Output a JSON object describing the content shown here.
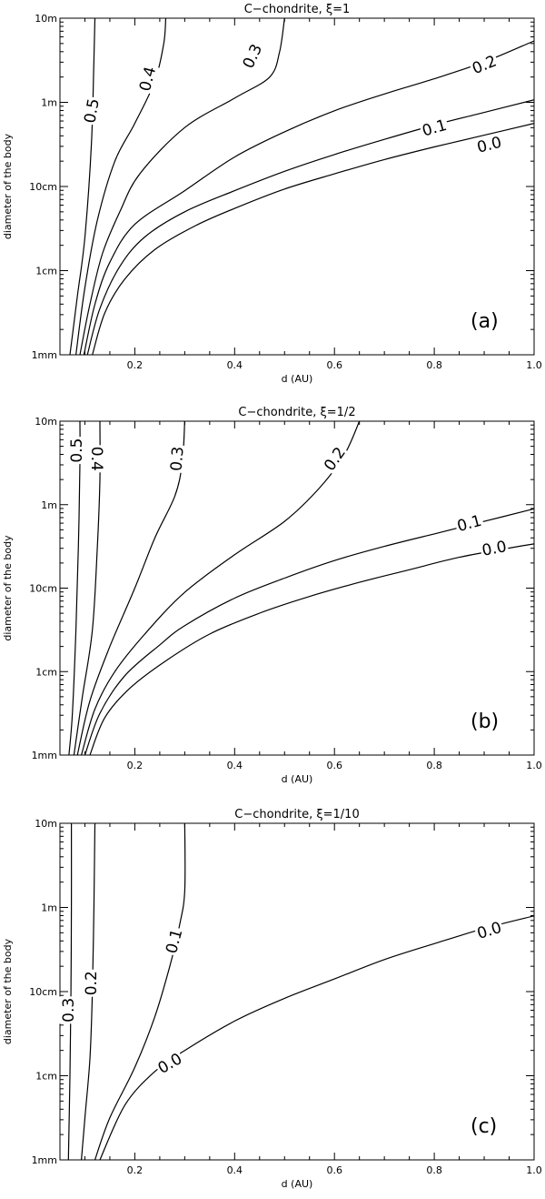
{
  "chart_data": [
    {
      "type": "contour",
      "title": "C−chondrite, ξ=1",
      "panel_label": "(a)",
      "xlabel": "d (AU)",
      "ylabel": "diameter of the body",
      "xlim": [
        0.05,
        1.0
      ],
      "ylim_log10_m": [
        -3,
        1
      ],
      "x_ticks": [
        0.2,
        0.4,
        0.6,
        0.8,
        1.0
      ],
      "x_tick_labels": [
        "0.2",
        "0.4",
        "0.6",
        "0.8",
        "1.0"
      ],
      "y_ticks": [
        -3,
        -2,
        -1,
        0,
        1
      ],
      "y_tick_labels": [
        "1mm",
        "1cm",
        "10cm",
        "1m",
        "10m"
      ],
      "contours": [
        {
          "level": "0.5",
          "points": [
            [
              0.07,
              -3.0
            ],
            [
              0.085,
              -2.3
            ],
            [
              0.1,
              -1.6
            ],
            [
              0.113,
              -0.5
            ],
            [
              0.118,
              0.5
            ],
            [
              0.12,
              1.0
            ]
          ],
          "label_at": [
            0.113,
            -0.1
          ],
          "label_rot": -80
        },
        {
          "level": "0.4",
          "points": [
            [
              0.082,
              -3.0
            ],
            [
              0.1,
              -2.2
            ],
            [
              0.125,
              -1.4
            ],
            [
              0.16,
              -0.7
            ],
            [
              0.2,
              -0.25
            ],
            [
              0.24,
              0.25
            ],
            [
              0.258,
              0.7
            ],
            [
              0.262,
              1.0
            ]
          ],
          "label_at": [
            0.225,
            0.28
          ],
          "label_rot": -75
        },
        {
          "level": "0.3",
          "points": [
            [
              0.09,
              -3.0
            ],
            [
              0.11,
              -2.4
            ],
            [
              0.135,
              -1.8
            ],
            [
              0.17,
              -1.3
            ],
            [
              0.21,
              -0.85
            ],
            [
              0.3,
              -0.3
            ],
            [
              0.4,
              0.05
            ],
            [
              0.47,
              0.3
            ],
            [
              0.49,
              0.6
            ],
            [
              0.5,
              1.0
            ]
          ],
          "label_at": [
            0.435,
            0.55
          ],
          "label_rot": -65
        },
        {
          "level": "0.2",
          "points": [
            [
              0.098,
              -3.0
            ],
            [
              0.12,
              -2.4
            ],
            [
              0.15,
              -1.9
            ],
            [
              0.2,
              -1.45
            ],
            [
              0.3,
              -1.05
            ],
            [
              0.4,
              -0.65
            ],
            [
              0.5,
              -0.35
            ],
            [
              0.6,
              -0.1
            ],
            [
              0.7,
              0.1
            ],
            [
              0.8,
              0.28
            ],
            [
              0.9,
              0.48
            ],
            [
              1.0,
              0.73
            ]
          ],
          "label_at": [
            0.9,
            0.45
          ],
          "label_rot": -22
        },
        {
          "level": "0.1",
          "points": [
            [
              0.105,
              -3.0
            ],
            [
              0.13,
              -2.45
            ],
            [
              0.17,
              -1.95
            ],
            [
              0.22,
              -1.6
            ],
            [
              0.3,
              -1.3
            ],
            [
              0.4,
              -1.05
            ],
            [
              0.5,
              -0.82
            ],
            [
              0.6,
              -0.62
            ],
            [
              0.7,
              -0.44
            ],
            [
              0.8,
              -0.27
            ],
            [
              0.9,
              -0.12
            ],
            [
              1.0,
              0.03
            ]
          ],
          "label_at": [
            0.8,
            -0.3
          ],
          "label_rot": -16
        },
        {
          "level": "0.0",
          "points": [
            [
              0.115,
              -3.0
            ],
            [
              0.14,
              -2.5
            ],
            [
              0.18,
              -2.1
            ],
            [
              0.24,
              -1.75
            ],
            [
              0.32,
              -1.47
            ],
            [
              0.4,
              -1.26
            ],
            [
              0.5,
              -1.03
            ],
            [
              0.6,
              -0.85
            ],
            [
              0.7,
              -0.68
            ],
            [
              0.8,
              -0.53
            ],
            [
              0.9,
              -0.39
            ],
            [
              1.0,
              -0.25
            ]
          ],
          "label_at": [
            0.91,
            -0.5
          ],
          "label_rot": -14
        }
      ]
    },
    {
      "type": "contour",
      "title": "C−chondrite, ξ=1/2",
      "panel_label": "(b)",
      "xlabel": "d (AU)",
      "ylabel": "diameter of the body",
      "xlim": [
        0.05,
        1.0
      ],
      "ylim_log10_m": [
        -3,
        1
      ],
      "x_ticks": [
        0.2,
        0.4,
        0.6,
        0.8,
        1.0
      ],
      "x_tick_labels": [
        "0.2",
        "0.4",
        "0.6",
        "0.8",
        "1.0"
      ],
      "y_ticks": [
        -3,
        -2,
        -1,
        0,
        1
      ],
      "y_tick_labels": [
        "1mm",
        "1cm",
        "10cm",
        "1m",
        "10m"
      ],
      "contours": [
        {
          "level": "0.5",
          "points": [
            [
              0.068,
              -3.0
            ],
            [
              0.075,
              -2.5
            ],
            [
              0.082,
              -1.5
            ],
            [
              0.087,
              -0.5
            ],
            [
              0.09,
              0.5
            ],
            [
              0.09,
              1.0
            ]
          ],
          "label_at": [
            0.083,
            0.65
          ],
          "label_rot": -90
        },
        {
          "level": "0.4",
          "points": [
            [
              0.078,
              -3.0
            ],
            [
              0.095,
              -2.3
            ],
            [
              0.115,
              -1.5
            ],
            [
              0.125,
              -0.5
            ],
            [
              0.13,
              0.3
            ],
            [
              0.13,
              1.0
            ]
          ],
          "label_at": [
            0.125,
            0.55
          ],
          "label_rot": 90
        },
        {
          "level": "0.3",
          "points": [
            [
              0.085,
              -3.0
            ],
            [
              0.11,
              -2.35
            ],
            [
              0.15,
              -1.7
            ],
            [
              0.2,
              -1.0
            ],
            [
              0.24,
              -0.4
            ],
            [
              0.28,
              0.1
            ],
            [
              0.295,
              0.5
            ],
            [
              0.3,
              1.0
            ]
          ],
          "label_at": [
            0.284,
            0.55
          ],
          "label_rot": -85
        },
        {
          "level": "0.2",
          "points": [
            [
              0.093,
              -3.0
            ],
            [
              0.12,
              -2.45
            ],
            [
              0.16,
              -2.0
            ],
            [
              0.22,
              -1.55
            ],
            [
              0.3,
              -1.05
            ],
            [
              0.4,
              -0.6
            ],
            [
              0.5,
              -0.2
            ],
            [
              0.57,
              0.2
            ],
            [
              0.62,
              0.6
            ],
            [
              0.65,
              1.0
            ]
          ],
          "label_at": [
            0.6,
            0.55
          ],
          "label_rot": -55
        },
        {
          "level": "0.1",
          "points": [
            [
              0.1,
              -3.0
            ],
            [
              0.13,
              -2.5
            ],
            [
              0.18,
              -2.05
            ],
            [
              0.25,
              -1.68
            ],
            [
              0.3,
              -1.45
            ],
            [
              0.4,
              -1.12
            ],
            [
              0.5,
              -0.88
            ],
            [
              0.6,
              -0.67
            ],
            [
              0.7,
              -0.5
            ],
            [
              0.8,
              -0.35
            ],
            [
              0.9,
              -0.2
            ],
            [
              1.0,
              -0.05
            ]
          ],
          "label_at": [
            0.87,
            -0.22
          ],
          "label_rot": -15
        },
        {
          "level": "0.0",
          "points": [
            [
              0.11,
              -3.0
            ],
            [
              0.14,
              -2.55
            ],
            [
              0.19,
              -2.2
            ],
            [
              0.26,
              -1.88
            ],
            [
              0.35,
              -1.55
            ],
            [
              0.45,
              -1.3
            ],
            [
              0.55,
              -1.1
            ],
            [
              0.65,
              -0.93
            ],
            [
              0.75,
              -0.78
            ],
            [
              0.85,
              -0.63
            ],
            [
              0.95,
              -0.52
            ],
            [
              1.0,
              -0.47
            ]
          ],
          "label_at": [
            0.92,
            -0.52
          ],
          "label_rot": -11
        }
      ]
    },
    {
      "type": "contour",
      "title": "C−chondrite, ξ=1/10",
      "panel_label": "(c)",
      "xlabel": "d (AU)",
      "ylabel": "diameter of the body",
      "xlim": [
        0.05,
        1.0
      ],
      "ylim_log10_m": [
        -3,
        1
      ],
      "x_ticks": [
        0.2,
        0.4,
        0.6,
        0.8,
        1.0
      ],
      "x_tick_labels": [
        "0.2",
        "0.4",
        "0.6",
        "0.8",
        "1.0"
      ],
      "y_ticks": [
        -3,
        -2,
        -1,
        0,
        1
      ],
      "y_tick_labels": [
        "1mm",
        "1cm",
        "10cm",
        "1m",
        "10m"
      ],
      "contours": [
        {
          "level": "0.3",
          "points": [
            [
              0.067,
              -3.0
            ],
            [
              0.07,
              -2.0
            ],
            [
              0.072,
              -1.0
            ],
            [
              0.073,
              0.0
            ],
            [
              0.073,
              1.0
            ]
          ],
          "label_at": [
            0.066,
            -1.22
          ],
          "label_rot": -90
        },
        {
          "level": "0.2",
          "points": [
            [
              0.093,
              -3.0
            ],
            [
              0.1,
              -2.5
            ],
            [
              0.11,
              -1.8
            ],
            [
              0.115,
              -1.0
            ],
            [
              0.118,
              0.0
            ],
            [
              0.12,
              1.0
            ]
          ],
          "label_at": [
            0.112,
            -0.9
          ],
          "label_rot": -90
        },
        {
          "level": "0.1",
          "points": [
            [
              0.12,
              -3.0
            ],
            [
              0.15,
              -2.5
            ],
            [
              0.2,
              -1.9
            ],
            [
              0.24,
              -1.3
            ],
            [
              0.27,
              -0.7
            ],
            [
              0.29,
              -0.2
            ],
            [
              0.3,
              0.2
            ],
            [
              0.3,
              1.0
            ]
          ],
          "label_at": [
            0.278,
            -0.4
          ],
          "label_rot": -75
        },
        {
          "level": "0.0",
          "points": [
            [
              0.13,
              -3.0
            ],
            [
              0.18,
              -2.35
            ],
            [
              0.24,
              -1.95
            ],
            [
              0.3,
              -1.7
            ],
            [
              0.4,
              -1.35
            ],
            [
              0.5,
              -1.08
            ],
            [
              0.6,
              -0.85
            ],
            [
              0.7,
              -0.62
            ],
            [
              0.8,
              -0.43
            ],
            [
              0.9,
              -0.25
            ],
            [
              1.0,
              -0.1
            ]
          ],
          "label_at": [
            0.27,
            -1.85
          ],
          "label_rot": -30,
          "label2_at": [
            0.91,
            -0.27
          ],
          "label2_rot": -17
        }
      ]
    }
  ]
}
